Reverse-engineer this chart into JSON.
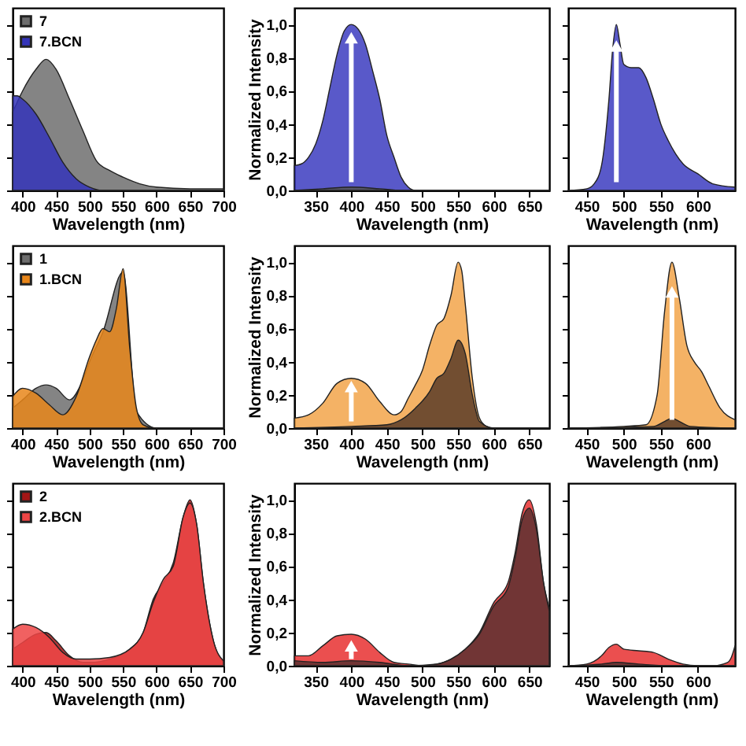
{
  "chart_data": [
    {
      "type": "area",
      "xlabel": "Wavelength (nm)",
      "xlim": [
        385,
        700
      ],
      "xticks": [
        400,
        450,
        500,
        550,
        600,
        650,
        700
      ],
      "ylim": [
        0,
        1.1
      ],
      "yticks": [
        0,
        0.2,
        0.4,
        0.6,
        0.8,
        1
      ],
      "tick_labels": "x",
      "legend": "top left",
      "series": [
        {
          "name": "7",
          "color": "#6e6e6e",
          "x": [
            385,
            400,
            420,
            435,
            450,
            470,
            490,
            510,
            530,
            550,
            575,
            600,
            650,
            700
          ],
          "values": [
            0.47,
            0.6,
            0.73,
            0.79,
            0.73,
            0.55,
            0.36,
            0.18,
            0.12,
            0.08,
            0.04,
            0.02,
            0.01,
            0.01
          ]
        },
        {
          "name": "7.BCN",
          "color": "#3434b8",
          "x": [
            385,
            392,
            400,
            420,
            440,
            460,
            480,
            500,
            520,
            700
          ],
          "values": [
            0.57,
            0.57,
            0.55,
            0.46,
            0.32,
            0.17,
            0.07,
            0.02,
            0,
            0
          ]
        }
      ]
    },
    {
      "type": "area",
      "xlabel": "Wavelength (nm)",
      "ylabel": "Normalized Intensity",
      "xlim": [
        320,
        678
      ],
      "xticks": [
        350,
        400,
        450,
        500,
        550,
        600,
        650
      ],
      "ylim": [
        0,
        1.1
      ],
      "yticks": [
        {
          "value": 0,
          "label": "0,0"
        },
        {
          "value": 0.2,
          "label": "0,2"
        },
        {
          "value": 0.4,
          "label": "0,4"
        },
        {
          "value": 0.6,
          "label": "0,6"
        },
        {
          "value": 0.8,
          "label": "0,8"
        },
        {
          "value": 1,
          "label": "1,0"
        }
      ],
      "series": [
        {
          "color": "#3c3cc0",
          "x": [
            320,
            330,
            340,
            350,
            360,
            370,
            380,
            390,
            400,
            410,
            420,
            430,
            440,
            450,
            460,
            470,
            480,
            490,
            678
          ],
          "values": [
            0.15,
            0.16,
            0.2,
            0.28,
            0.42,
            0.62,
            0.82,
            0.96,
            1.0,
            0.97,
            0.88,
            0.72,
            0.55,
            0.33,
            0.2,
            0.08,
            0.02,
            0,
            0
          ]
        },
        {
          "color": "#555555",
          "x": [
            320,
            360,
            400,
            440,
            470,
            678
          ],
          "values": [
            0,
            0.01,
            0.02,
            0.01,
            0,
            0
          ]
        }
      ]
    },
    {
      "type": "area",
      "xlabel": "Wavelength (nm)",
      "xlim": [
        425,
        650
      ],
      "xticks": [
        450,
        500,
        550,
        600
      ],
      "ylim": [
        0,
        1.1
      ],
      "yticks": [
        0,
        0.2,
        0.4,
        0.6,
        0.8,
        1
      ],
      "tick_labels": "x",
      "series": [
        {
          "color": "#3c3cc0",
          "x": [
            425,
            450,
            460,
            470,
            480,
            485,
            490,
            495,
            500,
            510,
            520,
            530,
            540,
            550,
            560,
            570,
            580,
            600,
            620,
            650
          ],
          "values": [
            0,
            0.01,
            0.04,
            0.15,
            0.55,
            0.85,
            1.0,
            0.88,
            0.76,
            0.74,
            0.74,
            0.68,
            0.55,
            0.4,
            0.3,
            0.22,
            0.16,
            0.1,
            0.04,
            0.02
          ]
        }
      ]
    },
    {
      "type": "area",
      "xlabel": "Wavelength (nm)",
      "xlim": [
        385,
        700
      ],
      "xticks": [
        400,
        450,
        500,
        550,
        600,
        650,
        700
      ],
      "ylim": [
        0,
        1.1
      ],
      "yticks": [
        0,
        0.2,
        0.4,
        0.6,
        0.8,
        1
      ],
      "tick_labels": "x",
      "legend": "top left",
      "series": [
        {
          "name": "1",
          "color": "#6e6e6e",
          "x": [
            385,
            400,
            420,
            435,
            450,
            470,
            490,
            500,
            520,
            550,
            570,
            600,
            700
          ],
          "values": [
            0.12,
            0.17,
            0.24,
            0.26,
            0.24,
            0.17,
            0.29,
            0.4,
            0.58,
            0.94,
            0.1,
            0,
            0
          ]
        },
        {
          "name": "1.BCN",
          "color": "#e8861a",
          "x": [
            385,
            400,
            420,
            440,
            460,
            480,
            500,
            510,
            520,
            530,
            540,
            550,
            560,
            570,
            580,
            600,
            700
          ],
          "values": [
            0.19,
            0.24,
            0.21,
            0.14,
            0.08,
            0.19,
            0.43,
            0.53,
            0.6,
            0.58,
            0.72,
            0.96,
            0.48,
            0.12,
            0.02,
            0,
            0
          ]
        }
      ]
    },
    {
      "type": "area",
      "xlabel": "Wavelength (nm)",
      "ylabel": "Normalized Intensity",
      "xlim": [
        320,
        678
      ],
      "xticks": [
        350,
        400,
        450,
        500,
        550,
        600,
        650
      ],
      "ylim": [
        0,
        1.1
      ],
      "yticks": [
        {
          "value": 0,
          "label": "0,0"
        },
        {
          "value": 0.2,
          "label": "0,2"
        },
        {
          "value": 0.4,
          "label": "0,4"
        },
        {
          "value": 0.6,
          "label": "0,6"
        },
        {
          "value": 0.8,
          "label": "0,8"
        },
        {
          "value": 1,
          "label": "1,0"
        }
      ],
      "series": [
        {
          "color": "#f2a54a",
          "x": [
            320,
            340,
            360,
            380,
            400,
            420,
            440,
            460,
            470,
            480,
            490,
            500,
            510,
            520,
            530,
            540,
            550,
            555,
            560,
            570,
            580,
            590,
            600,
            678
          ],
          "values": [
            0.06,
            0.08,
            0.15,
            0.27,
            0.3,
            0.27,
            0.16,
            0.08,
            0.1,
            0.18,
            0.26,
            0.35,
            0.5,
            0.62,
            0.66,
            0.8,
            1.0,
            0.95,
            0.75,
            0.3,
            0.06,
            0.01,
            0,
            0
          ]
        },
        {
          "color": "#5a3c28",
          "x": [
            320,
            400,
            450,
            470,
            490,
            510,
            520,
            530,
            540,
            550,
            560,
            570,
            580,
            600,
            678
          ],
          "values": [
            0,
            0.01,
            0.02,
            0.05,
            0.12,
            0.22,
            0.3,
            0.33,
            0.42,
            0.53,
            0.45,
            0.2,
            0.04,
            0,
            0
          ]
        }
      ]
    },
    {
      "type": "area",
      "xlabel": "Wavelength (nm)",
      "xlim": [
        425,
        650
      ],
      "xticks": [
        450,
        500,
        550,
        600
      ],
      "ylim": [
        0,
        1.1
      ],
      "yticks": [
        0,
        0.2,
        0.4,
        0.6,
        0.8,
        1
      ],
      "tick_labels": "x",
      "series": [
        {
          "color": "#f2a54a",
          "x": [
            425,
            500,
            530,
            545,
            555,
            565,
            575,
            585,
            595,
            605,
            615,
            630,
            650
          ],
          "values": [
            0,
            0.01,
            0.02,
            0.2,
            0.7,
            1.0,
            0.78,
            0.5,
            0.4,
            0.34,
            0.25,
            0.12,
            0.05
          ]
        },
        {
          "color": "#5a3c28",
          "x": [
            425,
            540,
            555,
            565,
            575,
            590,
            650
          ],
          "values": [
            0,
            0.01,
            0.04,
            0.06,
            0.04,
            0.01,
            0
          ]
        }
      ]
    },
    {
      "type": "area",
      "xlabel": "Wavelength (nm)",
      "xlim": [
        385,
        700
      ],
      "xticks": [
        400,
        450,
        500,
        550,
        600,
        650,
        700
      ],
      "ylim": [
        0,
        1.1
      ],
      "yticks": [
        0,
        0.2,
        0.4,
        0.6,
        0.8,
        1
      ],
      "tick_labels": "x",
      "legend": "top left",
      "series": [
        {
          "name": "2",
          "color": "#a31515",
          "x": [
            385,
            400,
            420,
            435,
            450,
            470,
            490,
            500,
            530,
            560,
            580,
            595,
            610,
            625,
            640,
            650,
            660,
            670,
            685,
            700
          ],
          "values": [
            0.1,
            0.14,
            0.19,
            0.2,
            0.15,
            0.06,
            0.02,
            0.02,
            0.04,
            0.1,
            0.2,
            0.4,
            0.5,
            0.62,
            0.9,
            1.0,
            0.85,
            0.5,
            0.15,
            0.02
          ]
        },
        {
          "name": "2.BCN",
          "color": "#ee4545",
          "x": [
            385,
            400,
            420,
            440,
            460,
            480,
            500,
            530,
            560,
            580,
            595,
            610,
            625,
            640,
            650,
            660,
            670,
            685,
            700
          ],
          "values": [
            0.22,
            0.25,
            0.23,
            0.17,
            0.08,
            0.04,
            0.04,
            0.05,
            0.1,
            0.2,
            0.38,
            0.52,
            0.6,
            0.9,
            0.98,
            0.85,
            0.5,
            0.15,
            0.03
          ]
        }
      ]
    },
    {
      "type": "area",
      "xlabel": "Wavelength (nm)",
      "ylabel": "Normalized Intensity",
      "xlim": [
        320,
        678
      ],
      "xticks": [
        350,
        400,
        450,
        500,
        550,
        600,
        650
      ],
      "ylim": [
        0,
        1.1
      ],
      "yticks": [
        {
          "value": 0,
          "label": "0,0"
        },
        {
          "value": 0.2,
          "label": "0,2"
        },
        {
          "value": 0.4,
          "label": "0,4"
        },
        {
          "value": 0.6,
          "label": "0,6"
        },
        {
          "value": 0.8,
          "label": "0,8"
        },
        {
          "value": 1,
          "label": "1,0"
        }
      ],
      "series": [
        {
          "color": "#e83030",
          "x": [
            320,
            340,
            360,
            380,
            400,
            420,
            440,
            460,
            480,
            500,
            520,
            540,
            560,
            580,
            600,
            620,
            630,
            640,
            650,
            660,
            670,
            678
          ],
          "values": [
            0.06,
            0.06,
            0.12,
            0.18,
            0.19,
            0.16,
            0.08,
            0.02,
            0.01,
            0,
            0.01,
            0.04,
            0.1,
            0.2,
            0.38,
            0.5,
            0.68,
            0.92,
            1.0,
            0.85,
            0.5,
            0.35
          ]
        },
        {
          "color": "#5c3030",
          "x": [
            320,
            360,
            400,
            440,
            480,
            520,
            540,
            560,
            580,
            600,
            620,
            630,
            640,
            650,
            660,
            670,
            678
          ],
          "values": [
            0.03,
            0.02,
            0.03,
            0.02,
            0,
            0.01,
            0.04,
            0.1,
            0.19,
            0.36,
            0.47,
            0.65,
            0.88,
            0.95,
            0.82,
            0.5,
            0.33
          ]
        }
      ]
    },
    {
      "type": "area",
      "xlabel": "Wavelength (nm)",
      "xlim": [
        425,
        650
      ],
      "xticks": [
        450,
        500,
        550,
        600
      ],
      "ylim": [
        0,
        1.1
      ],
      "yticks": [
        0,
        0.2,
        0.4,
        0.6,
        0.8,
        1
      ],
      "tick_labels": "x",
      "series": [
        {
          "color": "#e83030",
          "x": [
            425,
            450,
            470,
            480,
            490,
            500,
            520,
            540,
            560,
            580,
            600,
            620,
            640,
            645,
            650
          ],
          "values": [
            0,
            0.01,
            0.06,
            0.11,
            0.13,
            0.1,
            0.09,
            0.08,
            0.04,
            0.01,
            0,
            0,
            0.02,
            0.05,
            0.12
          ]
        },
        {
          "color": "#5c3030",
          "x": [
            425,
            470,
            490,
            520,
            560,
            650
          ],
          "values": [
            0,
            0.01,
            0.02,
            0.01,
            0,
            0
          ]
        }
      ]
    }
  ]
}
